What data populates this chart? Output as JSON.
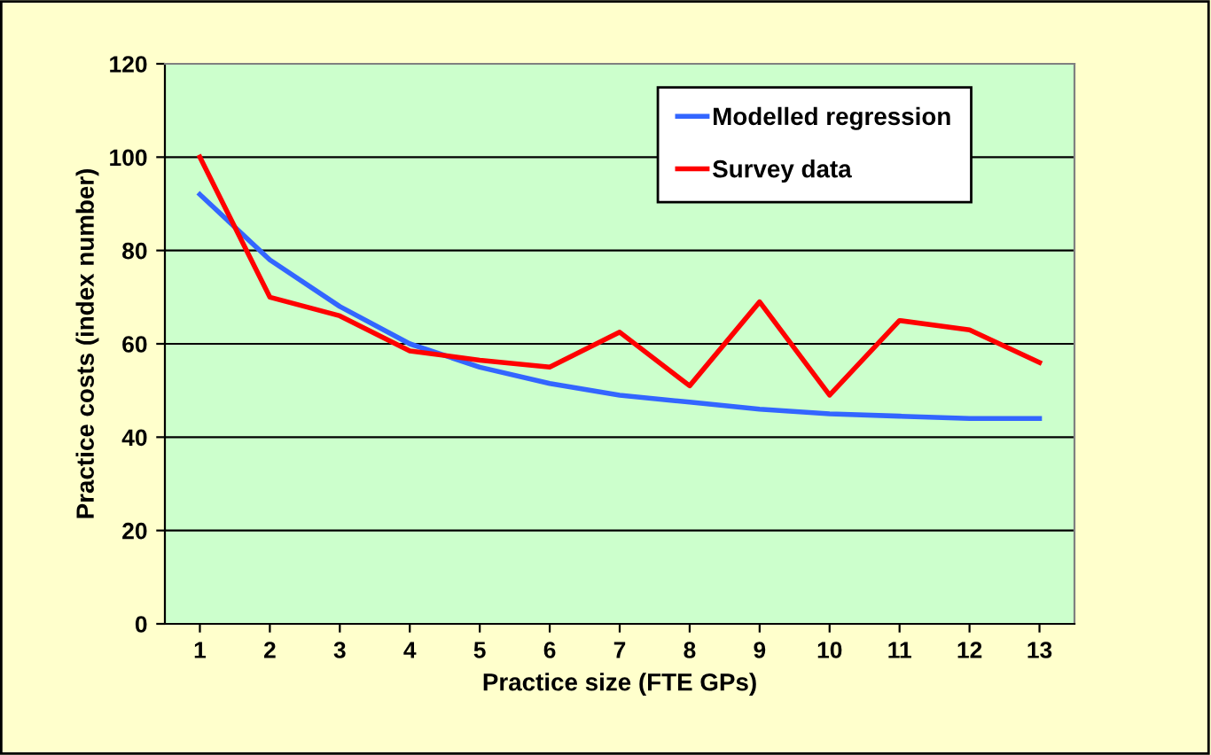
{
  "chart_data": {
    "type": "line",
    "xlabel": "Practice size (FTE GPs)",
    "ylabel": "Practice costs (index number)",
    "categories": [
      "1",
      "2",
      "3",
      "4",
      "5",
      "6",
      "7",
      "8",
      "9",
      "10",
      "11",
      "12",
      "13"
    ],
    "series": [
      {
        "name": "Modelled regression",
        "color": "#3366ff",
        "values": [
          92,
          78,
          68,
          60,
          55,
          51.5,
          49,
          47.5,
          46,
          45,
          44.5,
          44,
          44
        ]
      },
      {
        "name": "Survey data",
        "color": "#ff0000",
        "values": [
          100,
          70,
          66,
          58.5,
          56.5,
          55,
          62.5,
          51,
          69,
          49,
          65,
          63,
          56
        ]
      }
    ],
    "ylim": [
      0,
      120
    ],
    "yticks": [
      0,
      20,
      40,
      60,
      80,
      100,
      120
    ],
    "grid": "y",
    "legend": "top right",
    "marker": "none",
    "line_style": "solid"
  }
}
